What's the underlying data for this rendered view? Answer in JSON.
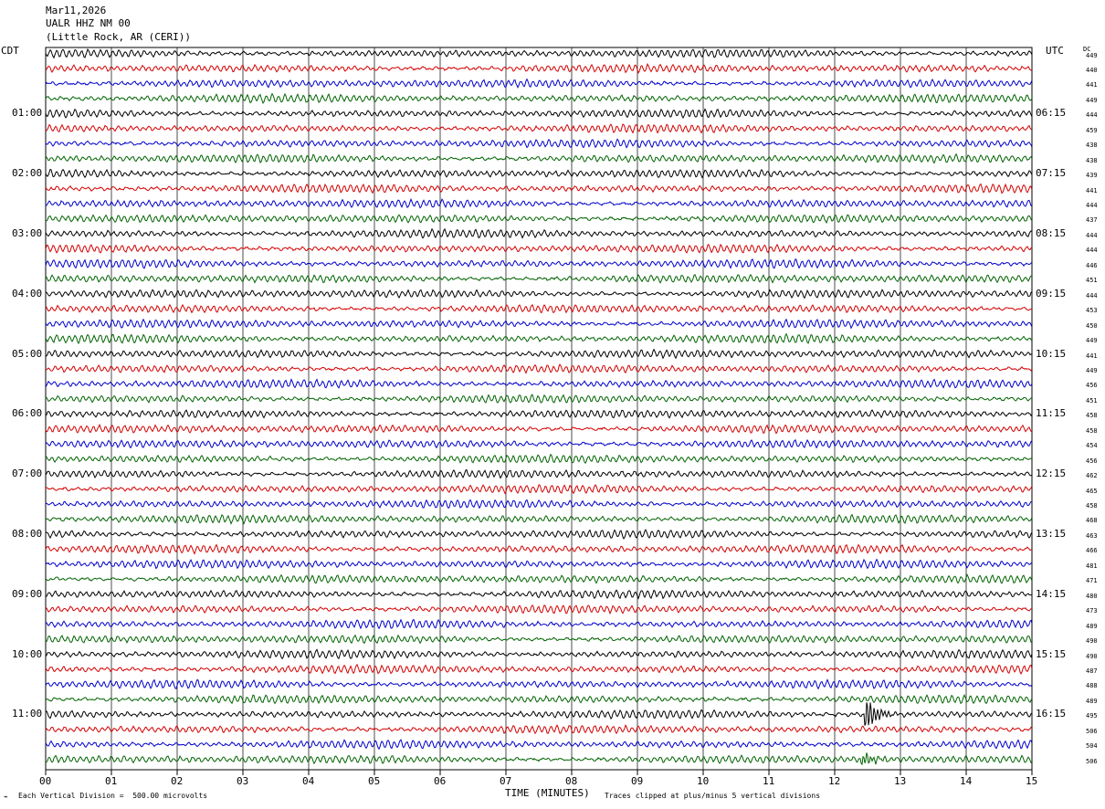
{
  "header": {
    "date": "Mar11,2026",
    "station": "UALR HHZ NM 00",
    "location": "(Little Rock, AR (CERI))"
  },
  "axis_labels": {
    "left_tz": "CDT",
    "right_tz": "UTC",
    "dc_header": "DC",
    "x_title": "TIME (MINUTES)"
  },
  "footer": {
    "scale_note": "Each Vertical Division =  500.00 microvolts",
    "clip_note": "Traces clipped at plus/minus 5 vertical divisions"
  },
  "colors": {
    "trace_cycle": [
      "#000000",
      "#d40000",
      "#0000cc",
      "#006400"
    ],
    "grid": "#000000",
    "background": "#ffffff"
  },
  "chart_data": {
    "type": "line",
    "title": "",
    "xlabel": "TIME (MINUTES)",
    "ylabel": "",
    "x_range": [
      0,
      15
    ],
    "x_ticks": [
      "00",
      "01",
      "02",
      "03",
      "04",
      "05",
      "06",
      "07",
      "08",
      "09",
      "10",
      "11",
      "12",
      "13",
      "14",
      "15"
    ],
    "traces_per_hour": 4,
    "trace_count": 48,
    "grid": true,
    "left_hour_labels": [
      "01:00",
      "02:00",
      "03:00",
      "04:00",
      "05:00",
      "06:00",
      "07:00",
      "08:00",
      "09:00",
      "10:00",
      "11:00"
    ],
    "left_hour_label_trace_index": [
      4,
      8,
      12,
      16,
      20,
      24,
      28,
      32,
      36,
      40,
      44
    ],
    "right_hour_labels": [
      "06:15",
      "07:15",
      "08:15",
      "09:15",
      "10:15",
      "11:15",
      "12:15",
      "13:15",
      "14:15",
      "15:15",
      "16:15"
    ],
    "right_hour_label_trace_index": [
      4,
      8,
      12,
      16,
      20,
      24,
      28,
      32,
      36,
      40,
      44
    ],
    "dc_offsets": [
      449,
      440,
      441,
      449,
      444,
      459,
      438,
      438,
      439,
      441,
      444,
      437,
      444,
      444,
      446,
      451,
      444,
      453,
      450,
      449,
      441,
      449,
      456,
      451,
      458,
      458,
      454,
      456,
      462,
      465,
      458,
      468,
      463,
      466,
      481,
      471,
      480,
      473,
      489,
      490,
      490,
      487,
      488,
      489,
      495,
      506,
      504,
      506
    ],
    "events": [
      {
        "trace_index": 44,
        "minute": 12.5,
        "amplitude_divisions": 5,
        "note": "clipped"
      },
      {
        "trace_index": 47,
        "minute": 12.45,
        "amplitude_divisions": 2
      }
    ]
  }
}
